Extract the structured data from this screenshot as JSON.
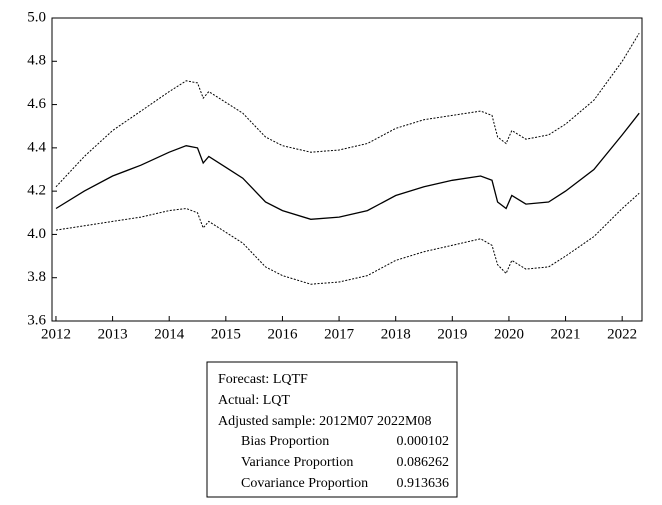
{
  "chart_data": {
    "type": "line",
    "x": [
      2012.0,
      2012.5,
      2013.0,
      2013.5,
      2014.0,
      2014.3,
      2014.5,
      2014.6,
      2014.7,
      2015.0,
      2015.3,
      2015.7,
      2016.0,
      2016.5,
      2017.0,
      2017.5,
      2018.0,
      2018.5,
      2019.0,
      2019.5,
      2019.7,
      2019.8,
      2019.95,
      2020.05,
      2020.3,
      2020.7,
      2021.0,
      2021.5,
      2022.0,
      2022.3
    ],
    "series": [
      {
        "color": "#000000",
        "style": "solid",
        "values": [
          4.12,
          4.2,
          4.27,
          4.32,
          4.38,
          4.41,
          4.4,
          4.33,
          4.36,
          4.31,
          4.26,
          4.15,
          4.11,
          4.07,
          4.08,
          4.11,
          4.18,
          4.22,
          4.25,
          4.27,
          4.25,
          4.15,
          4.12,
          4.18,
          4.14,
          4.15,
          4.2,
          4.3,
          4.46,
          4.56
        ]
      },
      {
        "color": "#000000",
        "style": "dotted",
        "values": [
          4.22,
          4.36,
          4.48,
          4.57,
          4.66,
          4.71,
          4.7,
          4.63,
          4.66,
          4.61,
          4.56,
          4.45,
          4.41,
          4.38,
          4.39,
          4.42,
          4.49,
          4.53,
          4.55,
          4.57,
          4.55,
          4.45,
          4.42,
          4.48,
          4.44,
          4.46,
          4.51,
          4.62,
          4.8,
          4.93
        ]
      },
      {
        "color": "#000000",
        "style": "dotted",
        "values": [
          4.02,
          4.04,
          4.06,
          4.08,
          4.11,
          4.12,
          4.1,
          4.03,
          4.06,
          4.01,
          3.96,
          3.85,
          3.81,
          3.77,
          3.78,
          3.81,
          3.88,
          3.92,
          3.95,
          3.98,
          3.95,
          3.86,
          3.82,
          3.88,
          3.84,
          3.85,
          3.9,
          3.99,
          4.12,
          4.19
        ]
      }
    ],
    "xlim": [
      2011.93,
      2022.35
    ],
    "xticks": [
      2012,
      2013,
      2014,
      2015,
      2016,
      2017,
      2018,
      2019,
      2020,
      2021,
      2022
    ],
    "ylim": [
      3.6,
      5.0
    ],
    "yticks": [
      3.6,
      3.8,
      {
        "value": 4.0,
        "label": "4.0"
      },
      4.2,
      4.4,
      4.6,
      4.8,
      {
        "value": 5.0,
        "label": "5.0"
      }
    ],
    "grid": false
  },
  "stats_box": {
    "lines": [
      "Forecast: LQTF",
      "Actual: LQT",
      "Adjusted sample: 2012M07 2022M08"
    ],
    "rows": [
      [
        "Bias Proportion",
        0.000102
      ],
      [
        "Variance Proportion",
        0.086262
      ],
      [
        "Covariance Proportion",
        0.913636
      ]
    ]
  }
}
